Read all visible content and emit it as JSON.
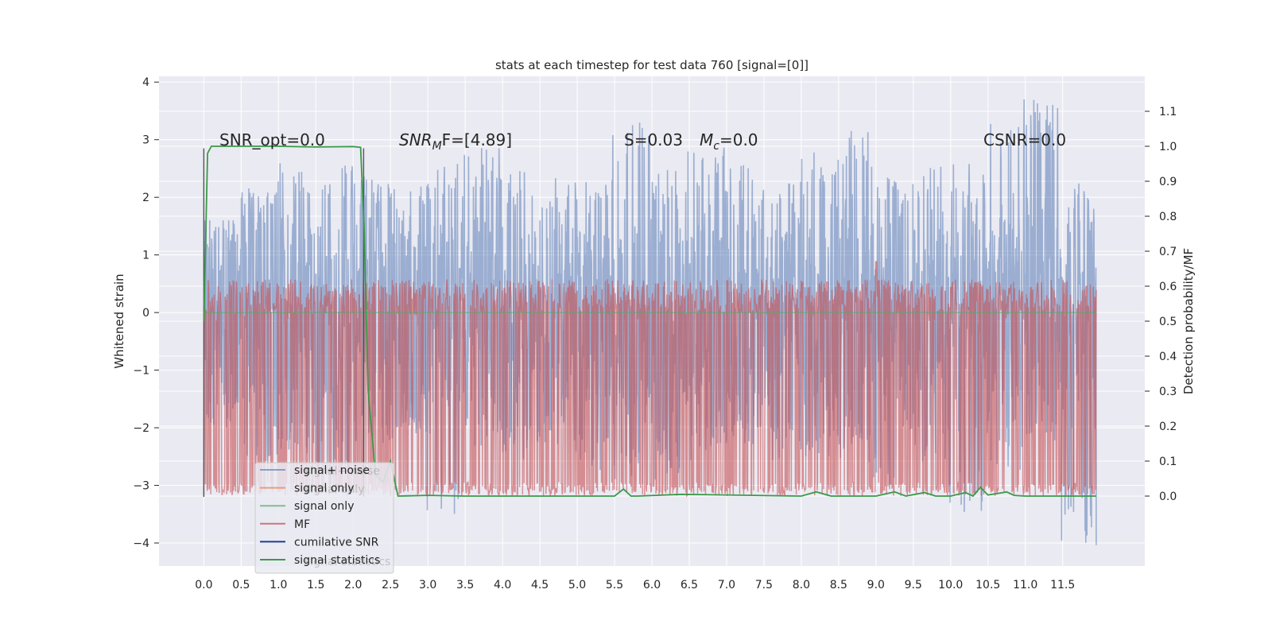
{
  "chart_data": {
    "type": "line",
    "title": "stats at each timestep for test data 760 [signal=[0]]",
    "xlabel": "",
    "ylabel": "Whitened strain",
    "y2label": "Detection probability/MF",
    "xlim": [
      -0.6,
      12.6
    ],
    "ylim": [
      -4.4,
      4.1
    ],
    "y2lim": [
      -0.2,
      1.2
    ],
    "x_ticks": [
      "0.0",
      "0.5",
      "1.0",
      "1.5",
      "2.0",
      "2.5",
      "3.0",
      "3.5",
      "4.0",
      "4.5",
      "5.0",
      "5.5",
      "6.0",
      "6.5",
      "7.0",
      "7.5",
      "8.0",
      "8.5",
      "9.0",
      "9.5",
      "10.0",
      "10.5",
      "11.0",
      "11.5"
    ],
    "y_ticks": [
      "4",
      "3",
      "2",
      "1",
      "0",
      "−1",
      "−2",
      "−3",
      "−4"
    ],
    "y2_ticks": [
      "1.1",
      "1.0",
      "0.9",
      "0.8",
      "0.7",
      "0.6",
      "0.5",
      "0.4",
      "0.3",
      "0.2",
      "0.1",
      "0.0"
    ],
    "grid": true,
    "colors": {
      "signal_noise": "#4c72b0",
      "signal_only_1": "#dd8452",
      "signal_only_2": "#55a868",
      "mf": "#c44e52",
      "cumulative_snr": "#1f3d8c",
      "signal_statistics": "#3a9a48",
      "marker": "#555555",
      "background": "#eaeaf2"
    },
    "annotations": {
      "snr_opt": "SNR_opt=0.0",
      "snr_mf_main": "SNR",
      "snr_mf_sub": "M",
      "snr_mf_rest": "F=[4.89]",
      "s_stat": "S=0.03",
      "mc_main": "M",
      "mc_sub": "c",
      "mc_rest": "=0.0",
      "csnr": "CSNR=0.0"
    },
    "legend": {
      "placement": "lower-left",
      "entries": [
        "signal+ noise",
        "signal only",
        "signal only",
        "MF",
        "cumilative SNR",
        "signal statistics"
      ],
      "ghost_entries": [
        "signal+ noise",
        "signal only",
        "signal statistics"
      ]
    },
    "vertical_markers_x": [
      0.0,
      2.14
    ],
    "series": [
      {
        "name": "signal+ noise",
        "axis": "left",
        "x_range": [
          0.0,
          11.95
        ],
        "envelope_upper": [
          1.6,
          2.2,
          2.6,
          2.7,
          2.4,
          2.2,
          2.6,
          2.9,
          2.5,
          2.4,
          2.6,
          3.4,
          2.5,
          2.9,
          2.6,
          2.3,
          2.8,
          3.3,
          2.4,
          2.6,
          2.6,
          3.5,
          3.7,
          2.3
        ],
        "envelope_lower": [
          -2.0,
          -2.6,
          -2.5,
          -2.9,
          -2.3,
          -2.2,
          -3.5,
          -2.4,
          -2.6,
          -2.3,
          -2.8,
          -3.0,
          -2.9,
          -2.6,
          -2.3,
          -2.6,
          -2.5,
          -2.6,
          -3.1,
          -2.6,
          -3.5,
          -2.8,
          -2.4,
          -4.1
        ]
      },
      {
        "name": "MF",
        "axis": "right",
        "x_range": [
          0.0,
          11.95
        ],
        "typical_max": 0.62,
        "peak": 0.67,
        "peak_x": 9.0
      },
      {
        "name": "signal statistics",
        "axis": "right",
        "x": [
          0.0,
          0.05,
          0.1,
          0.5,
          1.0,
          1.5,
          2.0,
          2.1,
          2.15,
          2.2,
          2.3,
          2.4,
          2.5,
          2.6,
          3.0,
          3.5,
          4.0,
          5.5,
          5.62,
          5.72,
          5.8,
          6.4,
          8.0,
          8.2,
          8.4,
          9.0,
          9.25,
          9.4,
          9.65,
          9.8,
          10.0,
          10.2,
          10.3,
          10.4,
          10.5,
          10.7,
          10.75,
          10.85,
          11.0,
          11.95
        ],
        "y": [
          0.5,
          0.98,
          1.0,
          1.0,
          1.0,
          0.998,
          0.999,
          0.997,
          0.75,
          0.3,
          0.06,
          0.04,
          0.1,
          0.0,
          0.002,
          0.0,
          0.0,
          0.0,
          0.02,
          0.0,
          0.0,
          0.005,
          0.0,
          0.012,
          0.0,
          0.0,
          0.012,
          0.0,
          0.01,
          0.0,
          0.0,
          0.01,
          0.0,
          0.025,
          0.003,
          0.01,
          0.012,
          0.002,
          0.0,
          0.0
        ]
      }
    ]
  }
}
